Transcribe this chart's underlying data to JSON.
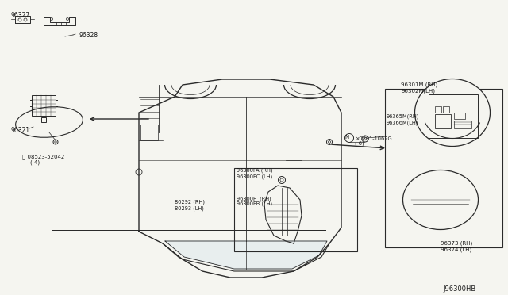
{
  "bg_color": "#f5f5f0",
  "line_color": "#2a2a2a",
  "text_color": "#1a1a1a",
  "diagram_id": "J96300HB",
  "labels": {
    "p96327": "96327",
    "p96328": "96328",
    "p96321": "96321",
    "p08523": "®08523-52042",
    "p08523b": "( 4)",
    "p80292": "80292 (RH)",
    "p80293": "80293 (LH)",
    "p96300FA": "96300FA (RH)",
    "p96300FC": "96300FC (LH)",
    "p96300F": "96300F  (RH)",
    "p96300FB": "96300FB (LH)",
    "p96301M": "96301M (RH)",
    "p96302M": "96302M(LH)",
    "p96365M": "96365M(RH)",
    "p96366M": "96366M(LH)",
    "p96373": "96373 (RH)",
    "p96374": "96374 (LH)",
    "pN0891": "Ⓝ×0891-1062G",
    "pN0891b": "( 6)"
  }
}
